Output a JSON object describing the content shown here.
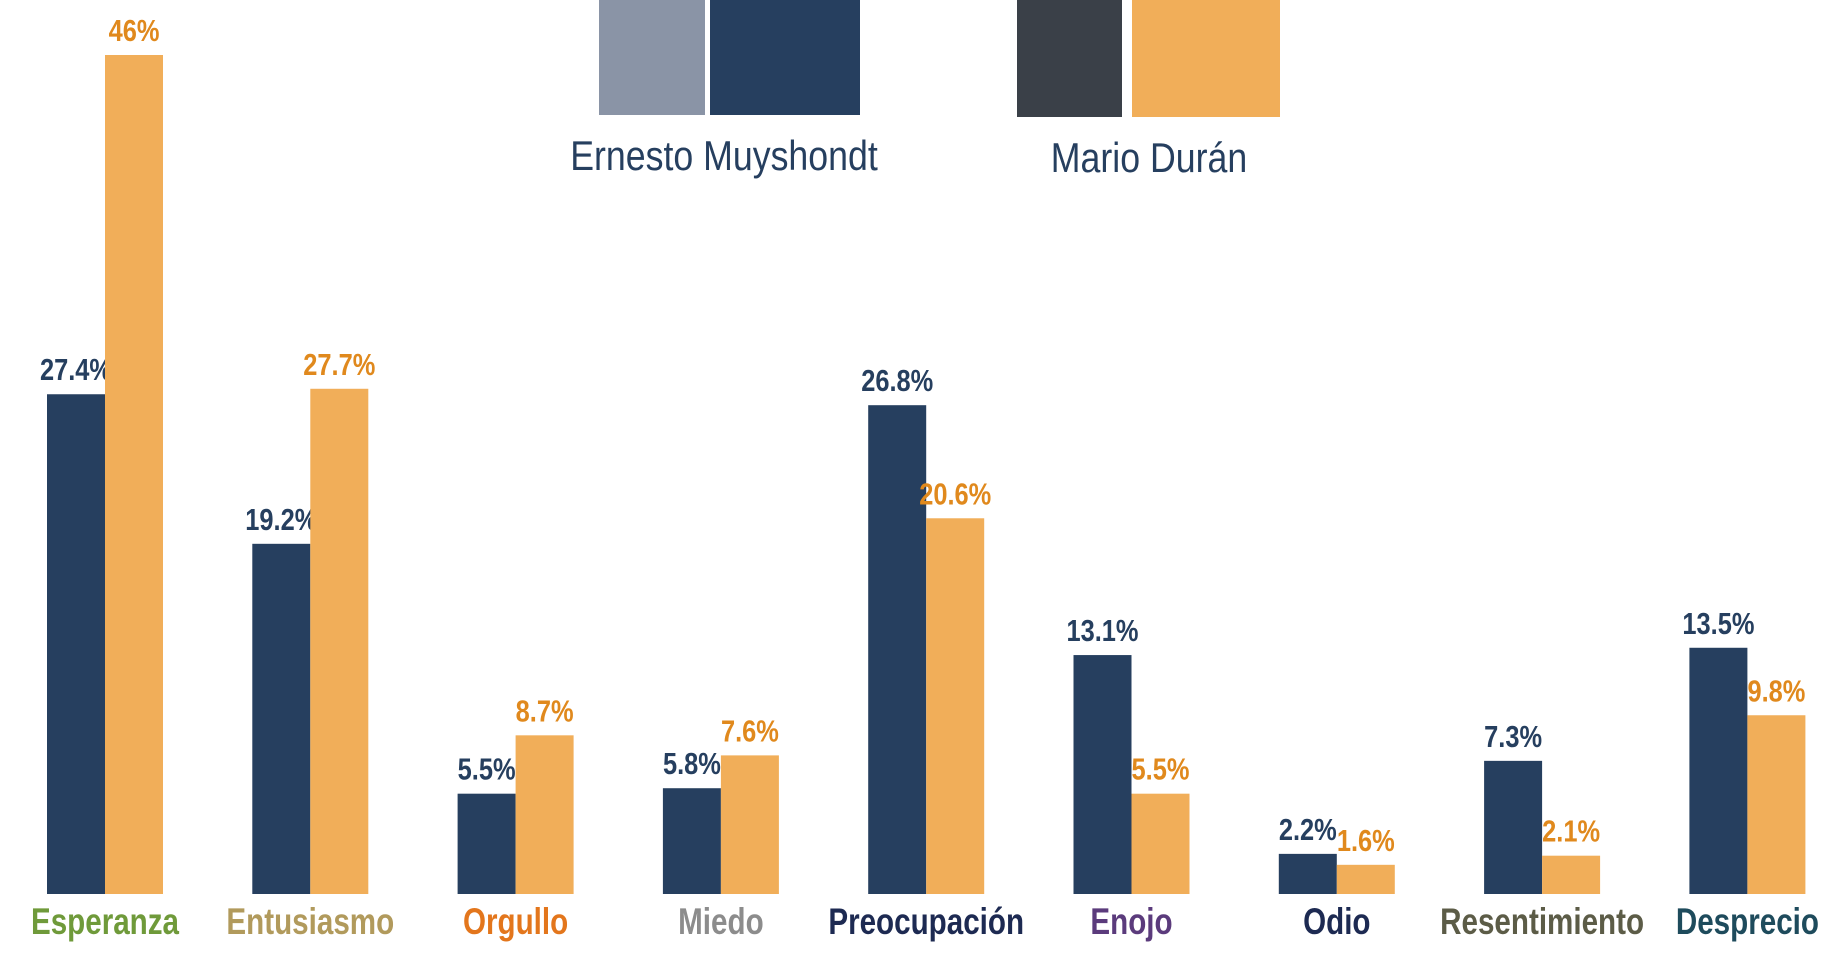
{
  "chart_data": {
    "type": "bar",
    "categories": [
      "Esperanza",
      "Entusiasmo",
      "Orgullo",
      "Miedo",
      "Preocupación",
      "Enojo",
      "Odio",
      "Resentimiento",
      "Desprecio"
    ],
    "category_colors": [
      "#6f9a3a",
      "#b19a5c",
      "#e3761c",
      "#8c8c8c",
      "#1d2a52",
      "#5b3b7c",
      "#1d2a52",
      "#5c5c47",
      "#1e4b5c"
    ],
    "series": [
      {
        "name": "Ernesto Muyshondt",
        "color": "#263f5f",
        "label_color": "#263f5f",
        "values": [
          27.4,
          19.2,
          5.5,
          5.8,
          26.8,
          13.1,
          2.2,
          7.3,
          13.5
        ],
        "value_labels": [
          "27.4%",
          "19.2%",
          "5.5%",
          "5.8%",
          "26.8%",
          "13.1%",
          "2.2%",
          "7.3%",
          "13.5%"
        ]
      },
      {
        "name": "Mario Durán",
        "color": "#f1ae59",
        "label_color": "#e0891d",
        "values": [
          46,
          27.7,
          8.7,
          7.6,
          20.6,
          5.5,
          1.6,
          2.1,
          9.8
        ],
        "value_labels": [
          "46%",
          "27.7%",
          "8.7%",
          "7.6%",
          "20.6%",
          "5.5%",
          "1.6%",
          "2.1%",
          "9.8%"
        ]
      }
    ],
    "ylim": [
      0,
      46
    ]
  }
}
